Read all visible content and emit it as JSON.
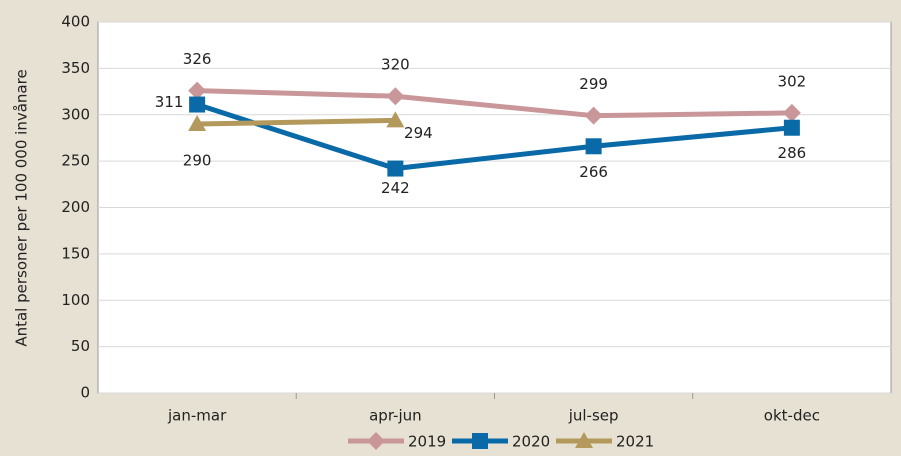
{
  "chart_data": {
    "type": "line",
    "y_label": "Antal personer per 100 000 invånare",
    "categories": [
      "jan-mar",
      "apr-jun",
      "jul-sep",
      "okt-dec"
    ],
    "series": [
      {
        "name": "2019",
        "color": "#c9979a",
        "values": [
          326,
          320,
          299,
          302
        ]
      },
      {
        "name": "2020",
        "color": "#0a6aa8",
        "values": [
          311,
          242,
          266,
          286
        ]
      },
      {
        "name": "2021",
        "color": "#b39a5c",
        "values": [
          290,
          294,
          null,
          null
        ]
      }
    ],
    "ylim": [
      0,
      400
    ],
    "yticks": [
      0,
      50,
      100,
      150,
      200,
      250,
      300,
      350,
      400
    ],
    "grid": true,
    "legend": "bottom"
  }
}
